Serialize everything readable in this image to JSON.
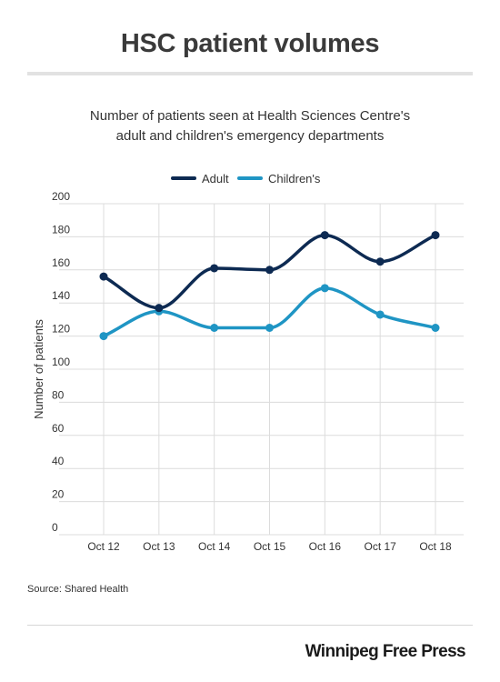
{
  "header": {
    "title": "HSC patient volumes",
    "subtitle_line1": "Number of patients seen at Health Sciences Centre's",
    "subtitle_line2": "adult and children's emergency departments"
  },
  "footer": {
    "source": "Source: Shared Health",
    "brand": "Winnipeg Free Press"
  },
  "chart_data": {
    "type": "line",
    "categories": [
      "Oct 12",
      "Oct 13",
      "Oct 14",
      "Oct 15",
      "Oct 16",
      "Oct 17",
      "Oct 18"
    ],
    "series": [
      {
        "name": "Adult",
        "color": "#0d2a52",
        "values": [
          156,
          137,
          161,
          160,
          181,
          165,
          181
        ]
      },
      {
        "name": "Children's",
        "color": "#1f95c4",
        "values": [
          120,
          135,
          125,
          125,
          149,
          133,
          125
        ]
      }
    ],
    "ylabel": "Number of patients",
    "ylim": [
      0,
      200
    ],
    "yticks": [
      0,
      20,
      40,
      60,
      80,
      100,
      120,
      140,
      160,
      180,
      200
    ],
    "grid": true,
    "legend": "top-center",
    "smooth": true
  }
}
